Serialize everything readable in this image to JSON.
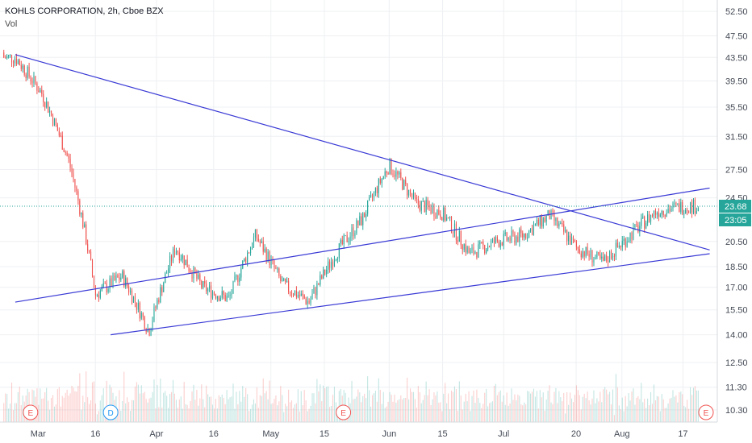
{
  "header": {
    "title": "KOHLS CORPORATION, 2h, Cboe BZX",
    "indicator": "Vol"
  },
  "colors": {
    "up": "#26a69a",
    "down": "#ef5350",
    "trendline": "#3a3ad6",
    "last_price_bg": "#26a69a",
    "grid": "#eef0f3",
    "axis_text": "#444a55"
  },
  "price_axis": {
    "ticks": [
      "52.50",
      "47.50",
      "43.50",
      "39.50",
      "35.50",
      "31.50",
      "27.50",
      "24.50",
      "20.50",
      "18.50",
      "17.00",
      "15.50",
      "14.00",
      "12.50",
      "11.30",
      "10.30"
    ],
    "last_price": "23.68",
    "countdown": "23:05"
  },
  "time_axis": {
    "ticks": [
      "Mar",
      "16",
      "Apr",
      "16",
      "May",
      "15",
      "Jun",
      "15",
      "Jul",
      "20",
      "Aug",
      "17"
    ]
  },
  "events": [
    {
      "label": "E",
      "type": "earnings"
    },
    {
      "label": "D",
      "type": "dividend"
    },
    {
      "label": "E",
      "type": "earnings"
    },
    {
      "label": "E",
      "type": "earnings"
    }
  ],
  "chart_data": {
    "type": "candlestick",
    "symbol": "KOHLS CORPORATION",
    "interval": "2h",
    "exchange": "Cboe BZX",
    "scale": "log",
    "ylim": [
      9.8,
      55
    ],
    "x": [
      "2020-02-24",
      "2020-03-02",
      "2020-03-09",
      "2020-03-16",
      "2020-03-23",
      "2020-03-30",
      "2020-04-06",
      "2020-04-13",
      "2020-04-20",
      "2020-04-27",
      "2020-05-04",
      "2020-05-11",
      "2020-05-18",
      "2020-05-25",
      "2020-06-01",
      "2020-06-08",
      "2020-06-15",
      "2020-06-22",
      "2020-06-29",
      "2020-07-06",
      "2020-07-13",
      "2020-07-20",
      "2020-07-27",
      "2020-08-03",
      "2020-08-10",
      "2020-08-17"
    ],
    "close": [
      43.5,
      37.5,
      28.5,
      16.5,
      17.8,
      14.2,
      20.0,
      17.0,
      16.2,
      21.0,
      17.2,
      16.0,
      19.5,
      22.5,
      28.0,
      24.0,
      23.0,
      19.5,
      20.5,
      21.0,
      22.8,
      20.0,
      18.8,
      21.0,
      23.2,
      23.68
    ],
    "trendlines": [
      {
        "from": [
          "2020-02-24",
          44.0
        ],
        "to": [
          "2020-08-24",
          19.8
        ]
      },
      {
        "from": [
          "2020-02-24",
          16.0
        ],
        "to": [
          "2020-08-24",
          25.5
        ]
      },
      {
        "from": [
          "2020-03-20",
          14.0
        ],
        "to": [
          "2020-08-24",
          19.5
        ]
      }
    ],
    "legend": "top-left",
    "grid": true
  }
}
